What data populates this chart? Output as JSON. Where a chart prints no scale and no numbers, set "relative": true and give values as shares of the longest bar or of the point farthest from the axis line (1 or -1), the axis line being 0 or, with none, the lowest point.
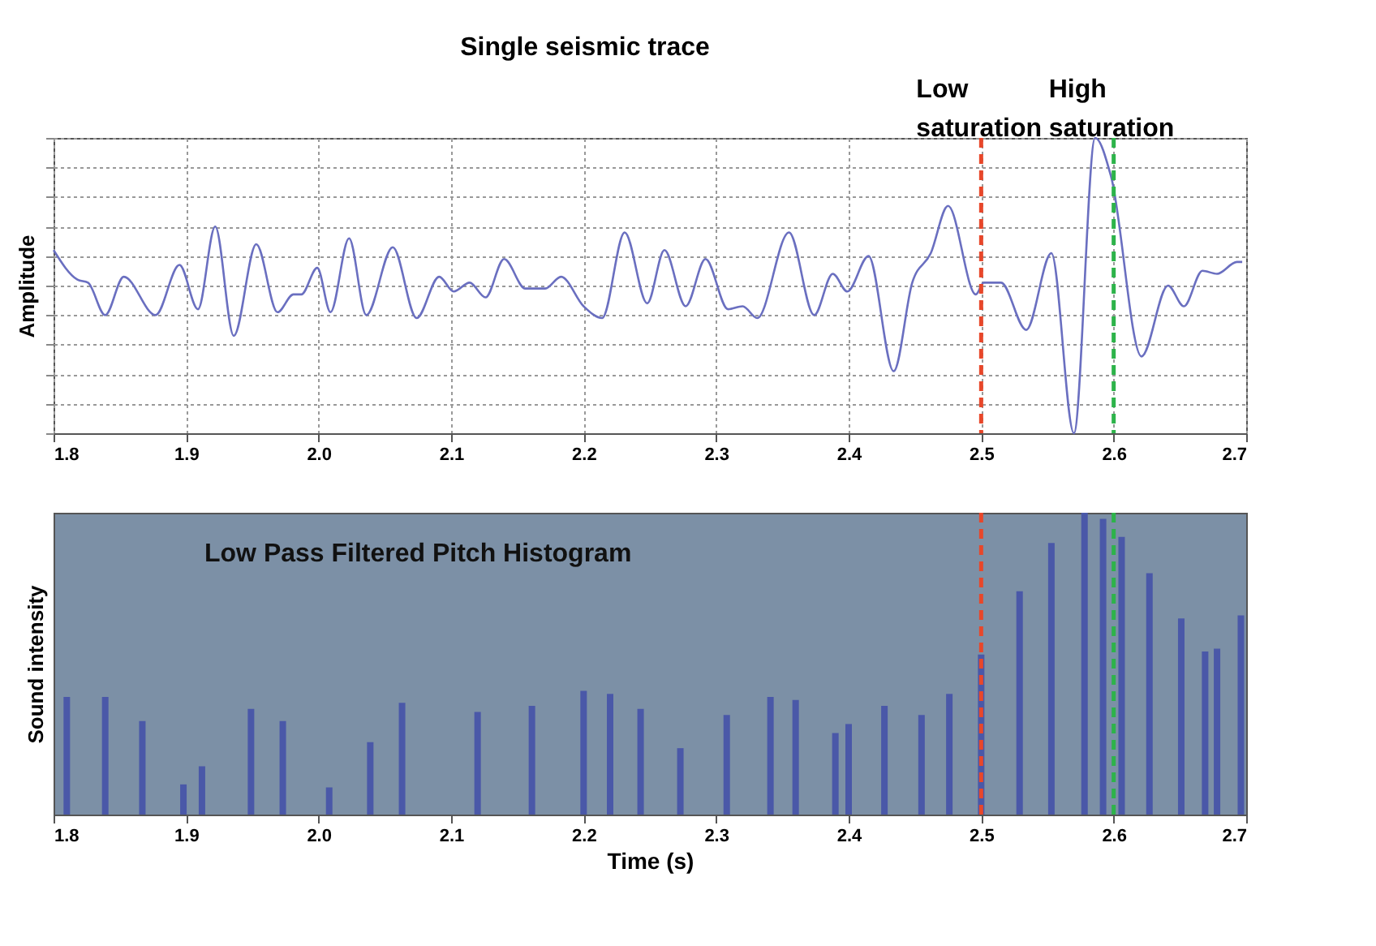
{
  "chart_data": [
    {
      "type": "line",
      "title": "Single seismic trace",
      "ylabel": "Amplitude",
      "relative": true,
      "grid": true,
      "xlim": [
        1.8,
        2.7
      ],
      "xticks": [
        {
          "value": 1.8,
          "label": "1.8"
        },
        {
          "value": 1.9,
          "label": "1.9"
        },
        {
          "value": 2.0,
          "label": "2.0"
        },
        {
          "value": 2.1,
          "label": "2.1"
        },
        {
          "value": 2.2,
          "label": "2.2"
        },
        {
          "value": 2.3,
          "label": "2.3"
        },
        {
          "value": 2.4,
          "label": "2.4"
        },
        {
          "value": 2.5,
          "label": "2.5"
        },
        {
          "value": 2.6,
          "label": "2.6"
        },
        {
          "value": 2.7,
          "label": "2.7"
        }
      ],
      "x": [
        1.8,
        1.818,
        1.826,
        1.839,
        1.853,
        1.877,
        1.895,
        1.909,
        1.922,
        1.936,
        1.953,
        1.969,
        1.981,
        1.987,
        1.999,
        2.009,
        2.023,
        2.036,
        2.056,
        2.074,
        2.091,
        2.102,
        2.114,
        2.126,
        2.14,
        2.156,
        2.171,
        2.183,
        2.2,
        2.214,
        2.231,
        2.248,
        2.261,
        2.277,
        2.292,
        2.309,
        2.32,
        2.331,
        2.355,
        2.374,
        2.388,
        2.399,
        2.415,
        2.434,
        2.448,
        2.462,
        2.475,
        2.496,
        2.502,
        2.515,
        2.534,
        2.553,
        2.57,
        2.586,
        2.598,
        2.621,
        2.641,
        2.653,
        2.667,
        2.678,
        2.693,
        2.697
      ],
      "series": [
        {
          "color": "#6a6fc0",
          "values": [
            0.62,
            0.52,
            0.51,
            0.4,
            0.53,
            0.4,
            0.57,
            0.42,
            0.7,
            0.33,
            0.64,
            0.41,
            0.47,
            0.47,
            0.56,
            0.41,
            0.66,
            0.4,
            0.63,
            0.39,
            0.53,
            0.48,
            0.51,
            0.46,
            0.59,
            0.49,
            0.49,
            0.53,
            0.43,
            0.39,
            0.68,
            0.44,
            0.62,
            0.43,
            0.59,
            0.42,
            0.43,
            0.39,
            0.68,
            0.4,
            0.54,
            0.48,
            0.6,
            0.21,
            0.51,
            0.61,
            0.77,
            0.47,
            0.51,
            0.51,
            0.35,
            0.61,
            0.0,
            1.0,
            0.87,
            0.26,
            0.5,
            0.43,
            0.55,
            0.54,
            0.58,
            0.58
          ]
        }
      ],
      "ref_lines": [
        {
          "axis": "x",
          "value": 2.5,
          "label": "Low saturation",
          "color": "#e8472a",
          "line_style": "dashed"
        },
        {
          "axis": "x",
          "value": 2.6,
          "label": "High saturation",
          "color": "#2db34a",
          "line_style": "dashed"
        }
      ]
    },
    {
      "type": "bar",
      "title": "Low Pass Filtered Pitch Histogram",
      "xlabel": "Time (s)",
      "ylabel": "Sound intensity",
      "relative": true,
      "xlim": [
        1.8,
        2.7
      ],
      "xticks": [
        {
          "value": 1.8,
          "label": "1.8"
        },
        {
          "value": 1.9,
          "label": "1.9"
        },
        {
          "value": 2.0,
          "label": "2.0"
        },
        {
          "value": 2.1,
          "label": "2.1"
        },
        {
          "value": 2.2,
          "label": "2.2"
        },
        {
          "value": 2.3,
          "label": "2.3"
        },
        {
          "value": 2.4,
          "label": "2.4"
        },
        {
          "value": 2.5,
          "label": "2.5"
        },
        {
          "value": 2.6,
          "label": "2.6"
        },
        {
          "value": 2.7,
          "label": "2.7"
        }
      ],
      "x": [
        1.81,
        1.839,
        1.867,
        1.898,
        1.912,
        1.949,
        1.973,
        2.008,
        2.039,
        2.063,
        2.12,
        2.161,
        2.2,
        2.22,
        2.243,
        2.273,
        2.308,
        2.341,
        2.36,
        2.39,
        2.4,
        2.427,
        2.455,
        2.476,
        2.5,
        2.529,
        2.553,
        2.578,
        2.592,
        2.606,
        2.627,
        2.651,
        2.669,
        2.678,
        2.696
      ],
      "series": [
        {
          "color": "#4a58a8",
          "values": [
            0.39,
            0.39,
            0.31,
            0.1,
            0.16,
            0.35,
            0.31,
            0.09,
            0.24,
            0.37,
            0.34,
            0.36,
            0.41,
            0.4,
            0.35,
            0.22,
            0.33,
            0.39,
            0.38,
            0.27,
            0.3,
            0.36,
            0.33,
            0.4,
            0.53,
            0.74,
            0.9,
            1.0,
            0.98,
            0.92,
            0.8,
            0.65,
            0.54,
            0.55,
            0.66
          ]
        }
      ],
      "ref_lines": [
        {
          "axis": "x",
          "value": 2.5,
          "color": "#e8472a",
          "line_style": "dashed"
        },
        {
          "axis": "x",
          "value": 2.6,
          "color": "#2db34a",
          "line_style": "dashed"
        }
      ]
    }
  ]
}
